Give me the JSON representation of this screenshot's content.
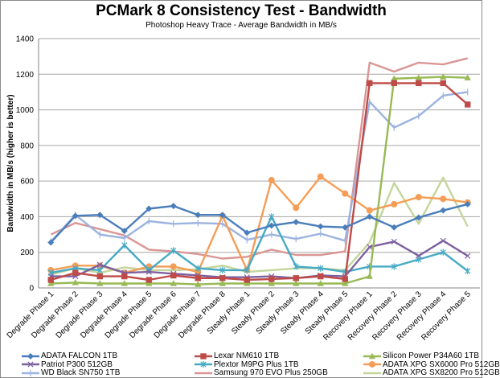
{
  "chart_data": {
    "type": "line",
    "title": "PCMark 8 Consistency Test - Bandwidth",
    "subtitle": "Photoshop Heavy Trace - Average Bandwidth in MB/s",
    "xlabel": "",
    "ylabel": "Bandwidth in MB/s (higher is better)",
    "ylim": [
      0,
      1400
    ],
    "yticks": [
      "0",
      "200",
      "400",
      "600",
      "800",
      "1000",
      "1200",
      "1400"
    ],
    "grid": true,
    "legend_position": "bottom",
    "categories": [
      "Degrade Phase 1",
      "Degrade Phase 2",
      "Degrade Phase 3",
      "Degrade Phase 4",
      "Degrade Phase 5",
      "Degrade Phase 6",
      "Degrade Phase 7",
      "Degrade Phase 8",
      "Steady Phase 1",
      "Steady Phase 2",
      "Steady Phase 3",
      "Steady Phase 4",
      "Steady Phase 5",
      "Recovery Phase 1",
      "Recovery Phase 2",
      "Recovery Phase 3",
      "Recovery Phase 4",
      "Recovery Phase 5"
    ],
    "series": [
      {
        "name": "ADATA FALCON 1TB",
        "color": "#4a7ebb",
        "marker": "diamond",
        "values": [
          255,
          405,
          410,
          320,
          445,
          460,
          410,
          410,
          310,
          350,
          370,
          345,
          340,
          400,
          340,
          395,
          435,
          470
        ]
      },
      {
        "name": "Lexar NM610 1TB",
        "color": "#be4b48",
        "marker": "square",
        "values": [
          45,
          85,
          65,
          65,
          45,
          70,
          55,
          55,
          45,
          50,
          55,
          65,
          50,
          1150,
          1150,
          1150,
          1150,
          1030
        ]
      },
      {
        "name": "Silicon Power P34A60 1TB",
        "color": "#98b954",
        "marker": "triangle",
        "values": [
          25,
          30,
          25,
          25,
          25,
          25,
          20,
          25,
          25,
          25,
          25,
          25,
          25,
          65,
          1175,
          1180,
          1185,
          1180
        ]
      },
      {
        "name": "Patriot P300 512GB",
        "color": "#7d60a0",
        "marker": "x",
        "values": [
          65,
          65,
          130,
          85,
          90,
          80,
          70,
          60,
          60,
          65,
          55,
          70,
          65,
          230,
          260,
          180,
          265,
          180
        ]
      },
      {
        "name": "Plextor M9PG Plus 1TB",
        "color": "#46aac5",
        "marker": "star",
        "values": [
          85,
          110,
          100,
          240,
          100,
          210,
          110,
          100,
          100,
          400,
          120,
          110,
          90,
          120,
          120,
          160,
          200,
          95
        ]
      },
      {
        "name": "ADATA XPG SX6000 Pro 512GB",
        "color": "#f59d56",
        "marker": "circle",
        "values": [
          100,
          125,
          125,
          85,
          120,
          120,
          90,
          405,
          100,
          605,
          450,
          625,
          530,
          435,
          470,
          510,
          500,
          480
        ]
      },
      {
        "name": "WD Black SN750 1TB",
        "color": "#9cb3e0",
        "marker": "plus",
        "values": [
          260,
          410,
          300,
          280,
          375,
          360,
          365,
          360,
          270,
          300,
          275,
          305,
          265,
          1045,
          900,
          965,
          1080,
          1100
        ]
      },
      {
        "name": "Samsung 970 EVO Plus 250GB",
        "color": "#d99694",
        "marker": "none",
        "values": [
          300,
          365,
          330,
          295,
          215,
          205,
          190,
          165,
          175,
          215,
          185,
          185,
          205,
          1265,
          1215,
          1265,
          1255,
          1290
        ]
      },
      {
        "name": "ADATA XPG SX8200 Pro 512GB",
        "color": "#c3d69b",
        "marker": "none",
        "values": [
          75,
          110,
          85,
          115,
          100,
          100,
          105,
          125,
          90,
          100,
          110,
          110,
          100,
          255,
          590,
          360,
          620,
          345
        ]
      }
    ]
  }
}
